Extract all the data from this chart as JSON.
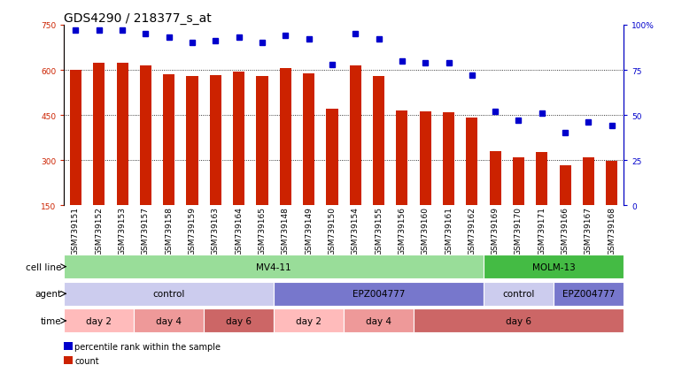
{
  "title": "GDS4290 / 218377_s_at",
  "samples": [
    "GSM739151",
    "GSM739152",
    "GSM739153",
    "GSM739157",
    "GSM739158",
    "GSM739159",
    "GSM739163",
    "GSM739164",
    "GSM739165",
    "GSM739148",
    "GSM739149",
    "GSM739150",
    "GSM739154",
    "GSM739155",
    "GSM739156",
    "GSM739160",
    "GSM739161",
    "GSM739162",
    "GSM739169",
    "GSM739170",
    "GSM739171",
    "GSM739166",
    "GSM739167",
    "GSM739168"
  ],
  "counts": [
    600,
    625,
    625,
    615,
    585,
    578,
    582,
    595,
    578,
    605,
    588,
    472,
    616,
    580,
    465,
    462,
    460,
    440,
    330,
    310,
    328,
    282,
    308,
    298
  ],
  "percentile_ranks": [
    97,
    97,
    97,
    95,
    93,
    90,
    91,
    93,
    90,
    94,
    92,
    78,
    95,
    92,
    80,
    79,
    79,
    72,
    52,
    47,
    51,
    40,
    46,
    44
  ],
  "ylim_left": [
    150,
    750
  ],
  "yticks_left": [
    150,
    300,
    450,
    600,
    750
  ],
  "ylim_right": [
    0,
    100
  ],
  "yticks_right": [
    0,
    25,
    50,
    75,
    100
  ],
  "bar_color": "#cc2200",
  "dot_color": "#0000cc",
  "grid_color": "#000000",
  "cell_lines": [
    {
      "label": "MV4-11",
      "start": 0,
      "end": 18,
      "color": "#99dd99"
    },
    {
      "label": "MOLM-13",
      "start": 18,
      "end": 24,
      "color": "#44bb44"
    }
  ],
  "agent_sections": [
    {
      "label": "control",
      "start": 0,
      "end": 9,
      "color": "#ccccee"
    },
    {
      "label": "EPZ004777",
      "start": 9,
      "end": 18,
      "color": "#7777cc"
    },
    {
      "label": "control",
      "start": 18,
      "end": 21,
      "color": "#ccccee"
    },
    {
      "label": "EPZ004777",
      "start": 21,
      "end": 24,
      "color": "#7777cc"
    }
  ],
  "time_sections": [
    {
      "label": "day 2",
      "start": 0,
      "end": 3,
      "color": "#ffbbbb"
    },
    {
      "label": "day 4",
      "start": 3,
      "end": 6,
      "color": "#ee9999"
    },
    {
      "label": "day 6",
      "start": 6,
      "end": 9,
      "color": "#cc6666"
    },
    {
      "label": "day 2",
      "start": 9,
      "end": 12,
      "color": "#ffbbbb"
    },
    {
      "label": "day 4",
      "start": 12,
      "end": 15,
      "color": "#ee9999"
    },
    {
      "label": "day 6",
      "start": 15,
      "end": 24,
      "color": "#cc6666"
    }
  ],
  "legend_items": [
    {
      "label": "count",
      "color": "#cc2200"
    },
    {
      "label": "percentile rank within the sample",
      "color": "#0000cc"
    }
  ],
  "title_fontsize": 10,
  "tick_fontsize": 6.5,
  "label_fontsize": 7.5,
  "row_label_fontsize": 7.5,
  "section_fontsize": 7.5
}
